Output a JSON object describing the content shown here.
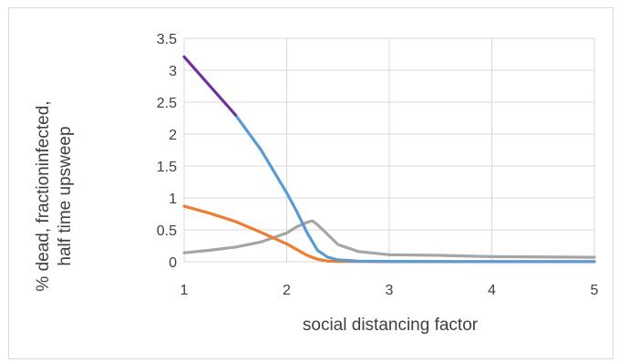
{
  "chart_data": {
    "type": "line",
    "xlabel": "social distancing factor",
    "ylabel_lines": [
      "% dead, fractioninfected,",
      "half time upsweep"
    ],
    "xlim": [
      1,
      5
    ],
    "ylim": [
      0,
      3.5
    ],
    "x_ticks": [
      "1",
      "2",
      "3",
      "4",
      "5"
    ],
    "y_ticks": [
      "0",
      "0.5",
      "1",
      "1.5",
      "2",
      "2.5",
      "3",
      "3.5"
    ],
    "grid": "horizontal and vertical",
    "series": [
      {
        "color": "#5b9bd5",
        "points": [
          [
            1.5,
            2.3
          ],
          [
            1.75,
            1.75
          ],
          [
            2.0,
            1.08
          ],
          [
            2.1,
            0.78
          ],
          [
            2.2,
            0.45
          ],
          [
            2.3,
            0.18
          ],
          [
            2.4,
            0.07
          ],
          [
            2.5,
            0.03
          ],
          [
            2.7,
            0.01
          ],
          [
            3.0,
            0.005
          ],
          [
            4.0,
            0.002
          ],
          [
            5.0,
            0.002
          ]
        ]
      },
      {
        "color": "#7030a0",
        "points": [
          [
            1.0,
            3.21
          ],
          [
            1.5,
            2.3
          ]
        ]
      },
      {
        "color": "#ed7d31",
        "points": [
          [
            1.0,
            0.87
          ],
          [
            1.25,
            0.76
          ],
          [
            1.5,
            0.63
          ],
          [
            1.75,
            0.46
          ],
          [
            2.0,
            0.28
          ],
          [
            2.1,
            0.19
          ],
          [
            2.2,
            0.1
          ],
          [
            2.3,
            0.04
          ],
          [
            2.4,
            0.01
          ],
          [
            2.5,
            0.005
          ],
          [
            3.0,
            0.002
          ],
          [
            5.0,
            0.002
          ]
        ]
      },
      {
        "color": "#a5a5a5",
        "points": [
          [
            1.0,
            0.14
          ],
          [
            1.25,
            0.18
          ],
          [
            1.5,
            0.23
          ],
          [
            1.75,
            0.31
          ],
          [
            2.0,
            0.45
          ],
          [
            2.1,
            0.55
          ],
          [
            2.2,
            0.62
          ],
          [
            2.25,
            0.64
          ],
          [
            2.3,
            0.58
          ],
          [
            2.5,
            0.27
          ],
          [
            2.7,
            0.16
          ],
          [
            3.0,
            0.11
          ],
          [
            3.5,
            0.1
          ],
          [
            4.0,
            0.08
          ],
          [
            5.0,
            0.07
          ]
        ]
      }
    ]
  }
}
